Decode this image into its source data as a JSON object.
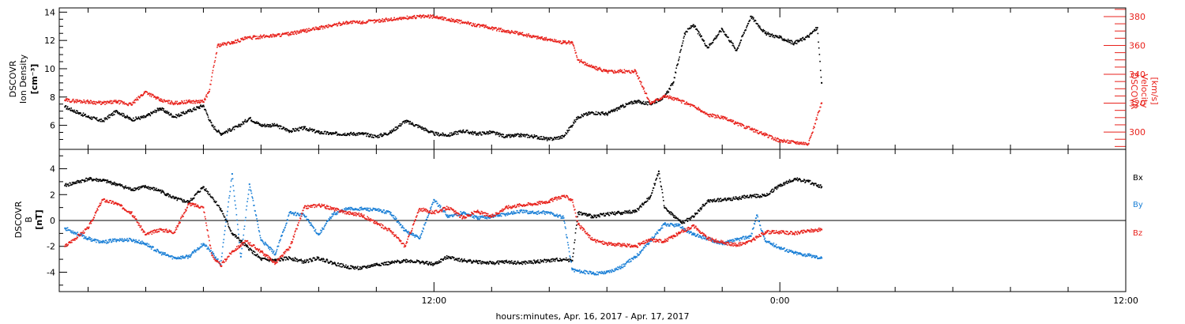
{
  "colors": {
    "density": "#000000",
    "velocity": "#e8221c",
    "bx": "#000000",
    "by": "#1a7fd6",
    "bz": "#e8221c",
    "frame": "#000000"
  },
  "x_axis": {
    "label": "hours:minutes, Apr. 16, 2017 - Apr. 17, 2017",
    "range_hours": [
      -1,
      36
    ],
    "major_ticks": [
      {
        "hour": 12,
        "label": "12:00"
      },
      {
        "hour": 24,
        "label": "0:00"
      },
      {
        "hour": 36,
        "label": "12:00"
      }
    ],
    "minor_tick_step_hours": 2
  },
  "chart_data": [
    {
      "type": "scatter",
      "panel": "top",
      "left_axis": {
        "label_lines": [
          "DSCOVR",
          "Ion Density",
          "[cm⁻³]"
        ],
        "range": [
          4.3,
          14.3
        ],
        "ticks": [
          6,
          8,
          10,
          12,
          14
        ]
      },
      "right_axis": {
        "label_lines": [
          "DSCOVR",
          "Velocity",
          "[km/s]"
        ],
        "range": [
          288,
          386
        ],
        "ticks": [
          300,
          320,
          340,
          360,
          380
        ]
      },
      "series": [
        {
          "key": "density",
          "axis": "left",
          "x": [
            -0.8,
            0,
            0.5,
            1,
            1.5,
            2,
            2.5,
            3,
            3.5,
            4,
            4.3,
            4.6,
            5.2,
            5.6,
            6,
            6.5,
            7,
            7.5,
            8,
            8.5,
            9,
            9.5,
            10,
            10.5,
            11,
            11.5,
            12,
            12.5,
            13,
            13.5,
            14,
            14.5,
            15,
            15.5,
            16,
            16.5,
            17,
            17.5,
            18,
            18.5,
            19,
            19.5,
            20,
            20.3,
            20.7,
            21,
            21.5,
            22,
            22.5,
            23,
            23.5,
            24,
            24.5,
            25,
            25.3,
            25.45
          ],
          "y": [
            7.3,
            6.6,
            6.3,
            7.0,
            6.4,
            6.6,
            7.2,
            6.6,
            7.0,
            7.4,
            6.0,
            5.4,
            5.9,
            6.5,
            6.0,
            6.0,
            5.6,
            5.8,
            5.5,
            5.4,
            5.4,
            5.4,
            5.2,
            5.5,
            6.3,
            5.9,
            5.4,
            5.3,
            5.6,
            5.4,
            5.5,
            5.2,
            5.3,
            5.2,
            5.0,
            5.2,
            6.6,
            6.9,
            6.8,
            7.3,
            7.7,
            7.5,
            8.0,
            9.0,
            12.5,
            13.1,
            11.5,
            12.8,
            11.3,
            13.7,
            12.5,
            12.2,
            11.8,
            12.3,
            12.9,
            9.0
          ]
        },
        {
          "key": "velocity",
          "axis": "right",
          "x": [
            -0.8,
            0,
            0.5,
            1,
            1.5,
            2,
            2.5,
            3,
            3.5,
            4,
            4.2,
            4.5,
            5,
            5.5,
            6,
            6.5,
            7,
            7.5,
            8,
            8.5,
            9,
            9.5,
            10,
            10.5,
            11,
            11.5,
            12,
            12.5,
            13,
            13.5,
            14,
            14.5,
            15,
            15.5,
            16,
            16.5,
            16.8,
            17,
            17.5,
            18,
            18.5,
            19,
            19.5,
            20,
            20.5,
            21,
            21.5,
            22,
            22.5,
            23,
            23.5,
            24,
            24.5,
            25,
            25.45
          ],
          "y": [
            322,
            321,
            320,
            321,
            319,
            328,
            322,
            320,
            321,
            321,
            328,
            360,
            362,
            365,
            366,
            367,
            368,
            370,
            372,
            374,
            376,
            376,
            377,
            378,
            379,
            380,
            380,
            378,
            376,
            374,
            372,
            370,
            368,
            366,
            364,
            362,
            362,
            350,
            345,
            342,
            342,
            342,
            320,
            325,
            322,
            318,
            312,
            310,
            306,
            302,
            298,
            294,
            293,
            292,
            320
          ]
        }
      ]
    },
    {
      "type": "scatter",
      "panel": "bottom",
      "left_axis": {
        "label_lines": [
          "DSCOVR",
          "B",
          "[nT]"
        ],
        "range": [
          -5.5,
          5.5
        ],
        "ticks": [
          -4,
          -2,
          0,
          2,
          4
        ]
      },
      "zero_line": true,
      "series": [
        {
          "key": "bx",
          "name": "Bx",
          "x": [
            -0.8,
            0,
            0.5,
            1,
            1.5,
            2,
            2.5,
            3,
            3.5,
            4,
            4.3,
            4.6,
            5,
            5.5,
            6,
            6.5,
            7,
            7.5,
            8,
            8.5,
            9,
            9.5,
            10,
            10.5,
            11,
            11.5,
            12,
            12.5,
            13,
            13.5,
            14,
            14.5,
            15,
            15.5,
            16,
            16.5,
            16.8,
            17,
            17.5,
            18,
            18.5,
            19,
            19.5,
            19.8,
            20,
            20.3,
            20.6,
            21,
            21.5,
            22,
            22.5,
            23,
            23.5,
            24,
            24.5,
            25,
            25.45
          ],
          "y": [
            2.7,
            3.2,
            3.1,
            2.8,
            2.4,
            2.6,
            2.3,
            1.7,
            1.4,
            2.6,
            1.8,
            0.9,
            -1.0,
            -2.0,
            -3.0,
            -3.1,
            -2.9,
            -3.2,
            -2.9,
            -3.3,
            -3.6,
            -3.7,
            -3.4,
            -3.3,
            -3.1,
            -3.2,
            -3.4,
            -2.8,
            -3.1,
            -3.2,
            -3.3,
            -3.2,
            -3.3,
            -3.2,
            -3.1,
            -3.0,
            -3.1,
            0.6,
            0.3,
            0.5,
            0.6,
            0.7,
            1.8,
            3.8,
            1.0,
            0.4,
            -0.2,
            0.3,
            1.5,
            1.6,
            1.7,
            1.9,
            1.9,
            2.7,
            3.2,
            3.0,
            2.6
          ]
        },
        {
          "key": "by",
          "name": "By",
          "x": [
            -0.8,
            0,
            0.5,
            1,
            1.5,
            2,
            2.5,
            3,
            3.5,
            4,
            4.3,
            4.6,
            5,
            5.3,
            5.6,
            6,
            6.5,
            7,
            7.5,
            8,
            8.5,
            9,
            9.5,
            10,
            10.5,
            11,
            11.5,
            12,
            12.5,
            13,
            13.5,
            14,
            14.5,
            15,
            15.5,
            16,
            16.5,
            16.8,
            17,
            17.5,
            18,
            18.5,
            19,
            19.5,
            20,
            20.5,
            21,
            21.5,
            22,
            22.5,
            23,
            23.2,
            23.5,
            24,
            24.5,
            25,
            25.45
          ],
          "y": [
            -0.6,
            -1.4,
            -1.7,
            -1.5,
            -1.5,
            -1.8,
            -2.5,
            -2.9,
            -2.8,
            -1.8,
            -2.5,
            -3.4,
            3.6,
            -2.8,
            2.8,
            -1.5,
            -2.6,
            0.6,
            0.4,
            -1.1,
            0.5,
            0.9,
            0.9,
            0.8,
            0.6,
            -0.8,
            -1.4,
            1.6,
            0.3,
            0.6,
            0.2,
            0.3,
            0.5,
            0.7,
            0.6,
            0.6,
            0.2,
            -3.8,
            -3.9,
            -4.1,
            -4.0,
            -3.6,
            -2.8,
            -1.6,
            -0.3,
            -0.4,
            -1.1,
            -1.4,
            -1.8,
            -1.5,
            -1.2,
            0.4,
            -1.6,
            -2.1,
            -2.5,
            -2.7,
            -2.9
          ]
        },
        {
          "key": "bz",
          "name": "Bz",
          "x": [
            -0.8,
            0,
            0.5,
            1,
            1.5,
            2,
            2.5,
            3,
            3.5,
            4,
            4.3,
            4.6,
            5,
            5.5,
            6,
            6.5,
            7,
            7.5,
            8,
            8.5,
            9,
            9.5,
            10,
            10.5,
            11,
            11.5,
            12,
            12.5,
            13,
            13.5,
            14,
            14.5,
            15,
            15.5,
            16,
            16.5,
            16.8,
            17,
            17.5,
            18,
            18.5,
            19,
            19.5,
            20,
            20.5,
            21,
            21.5,
            22,
            22.5,
            23,
            23.5,
            24,
            24.5,
            25,
            25.45
          ],
          "y": [
            -2.0,
            -0.6,
            1.6,
            1.3,
            0.6,
            -1.1,
            -0.7,
            -0.9,
            1.3,
            1.0,
            -2.7,
            -3.5,
            -2.4,
            -1.6,
            -2.4,
            -3.3,
            -2.1,
            1.0,
            1.2,
            0.9,
            0.6,
            0.4,
            -0.2,
            -0.8,
            -2.0,
            0.9,
            0.6,
            1.0,
            0.2,
            0.7,
            0.3,
            1.0,
            1.2,
            1.3,
            1.5,
            1.9,
            1.6,
            -0.3,
            -1.5,
            -1.8,
            -1.9,
            -2.0,
            -1.5,
            -1.6,
            -1.0,
            -0.4,
            -1.4,
            -1.7,
            -1.9,
            -1.6,
            -0.9,
            -0.9,
            -1.0,
            -0.8,
            -0.7
          ]
        }
      ]
    }
  ]
}
